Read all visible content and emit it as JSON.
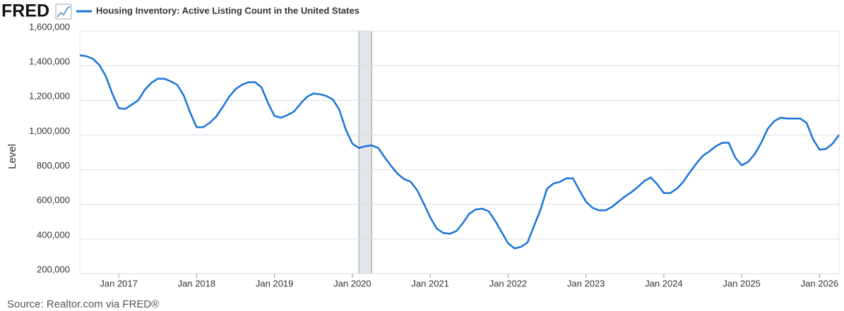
{
  "chart_data": {
    "type": "line",
    "brand": "FRED",
    "source": "Source: Realtor.com via FRED®",
    "y_label": "Level",
    "x": [
      "2016-07",
      "2016-08",
      "2016-09",
      "2016-10",
      "2016-11",
      "2016-12",
      "2017-01",
      "2017-02",
      "2017-03",
      "2017-04",
      "2017-05",
      "2017-06",
      "2017-07",
      "2017-08",
      "2017-09",
      "2017-10",
      "2017-11",
      "2017-12",
      "2018-01",
      "2018-02",
      "2018-03",
      "2018-04",
      "2018-05",
      "2018-06",
      "2018-07",
      "2018-08",
      "2018-09",
      "2018-10",
      "2018-11",
      "2018-12",
      "2019-01",
      "2019-02",
      "2019-03",
      "2019-04",
      "2019-05",
      "2019-06",
      "2019-07",
      "2019-08",
      "2019-09",
      "2019-10",
      "2019-11",
      "2019-12",
      "2020-01",
      "2020-02",
      "2020-03",
      "2020-04",
      "2020-05",
      "2020-06",
      "2020-07",
      "2020-08",
      "2020-09",
      "2020-10",
      "2020-11",
      "2020-12",
      "2021-01",
      "2021-02",
      "2021-03",
      "2021-04",
      "2021-05",
      "2021-06",
      "2021-07",
      "2021-08",
      "2021-09",
      "2021-10",
      "2021-11",
      "2021-12",
      "2022-01",
      "2022-02",
      "2022-03",
      "2022-04",
      "2022-05",
      "2022-06",
      "2022-07",
      "2022-08",
      "2022-09",
      "2022-10",
      "2022-11",
      "2022-12",
      "2023-01",
      "2023-02",
      "2023-03",
      "2023-04",
      "2023-05",
      "2023-06",
      "2023-07",
      "2023-08",
      "2023-09",
      "2023-10",
      "2023-11",
      "2023-12",
      "2024-01",
      "2024-02",
      "2024-03",
      "2024-04",
      "2024-05",
      "2024-06",
      "2024-07",
      "2024-08",
      "2024-09",
      "2024-10",
      "2024-11",
      "2024-12",
      "2025-01",
      "2025-02",
      "2025-03",
      "2025-04",
      "2025-05",
      "2025-06",
      "2025-07",
      "2025-08",
      "2025-09",
      "2025-10",
      "2025-11",
      "2025-12",
      "2026-01",
      "2026-02",
      "2026-03",
      "2026-04"
    ],
    "series": [
      {
        "name": "Housing Inventory: Active Listing Count in the United States",
        "color": "#1a73d9",
        "values": [
          1460000,
          1455000,
          1440000,
          1405000,
          1340000,
          1240000,
          1155000,
          1150000,
          1175000,
          1200000,
          1260000,
          1300000,
          1325000,
          1325000,
          1310000,
          1290000,
          1230000,
          1130000,
          1045000,
          1045000,
          1070000,
          1105000,
          1160000,
          1220000,
          1265000,
          1290000,
          1305000,
          1305000,
          1275000,
          1185000,
          1110000,
          1100000,
          1115000,
          1135000,
          1180000,
          1220000,
          1240000,
          1235000,
          1225000,
          1205000,
          1145000,
          1030000,
          950000,
          925000,
          935000,
          940000,
          925000,
          870000,
          820000,
          775000,
          745000,
          730000,
          680000,
          605000,
          525000,
          460000,
          435000,
          430000,
          445000,
          490000,
          545000,
          570000,
          575000,
          560000,
          505000,
          440000,
          375000,
          345000,
          355000,
          380000,
          475000,
          570000,
          690000,
          720000,
          730000,
          750000,
          750000,
          680000,
          615000,
          580000,
          565000,
          565000,
          585000,
          615000,
          645000,
          670000,
          700000,
          735000,
          755000,
          715000,
          665000,
          665000,
          690000,
          730000,
          785000,
          835000,
          880000,
          905000,
          935000,
          955000,
          955000,
          870000,
          825000,
          845000,
          890000,
          955000,
          1035000,
          1080000,
          1100000,
          1095000,
          1095000,
          1095000,
          1070000,
          975000,
          915000,
          920000,
          950000,
          1000000
        ]
      }
    ],
    "xlim": [
      "2016-07",
      "2026-04"
    ],
    "xticks": [
      {
        "value": "2017-01",
        "label": "Jan 2017"
      },
      {
        "value": "2018-01",
        "label": "Jan 2018"
      },
      {
        "value": "2019-01",
        "label": "Jan 2019"
      },
      {
        "value": "2020-01",
        "label": "Jan 2020"
      },
      {
        "value": "2021-01",
        "label": "Jan 2021"
      },
      {
        "value": "2022-01",
        "label": "Jan 2022"
      },
      {
        "value": "2023-01",
        "label": "Jan 2023"
      },
      {
        "value": "2024-01",
        "label": "Jan 2024"
      },
      {
        "value": "2025-01",
        "label": "Jan 2025"
      },
      {
        "value": "2026-01",
        "label": "Jan 2026"
      }
    ],
    "ylim": [
      200000,
      1600000
    ],
    "yticks": [
      {
        "value": 200000,
        "label": "200,000"
      },
      {
        "value": 400000,
        "label": "400,000"
      },
      {
        "value": 600000,
        "label": "600,000"
      },
      {
        "value": 800000,
        "label": "800,000"
      },
      {
        "value": 1000000,
        "label": "1,000,000"
      },
      {
        "value": 1200000,
        "label": "1,200,000"
      },
      {
        "value": 1400000,
        "label": "1,400,000"
      },
      {
        "value": 1600000,
        "label": "1,600,000"
      }
    ],
    "grid": true,
    "recession": [
      "2020-02",
      "2020-04"
    ]
  }
}
